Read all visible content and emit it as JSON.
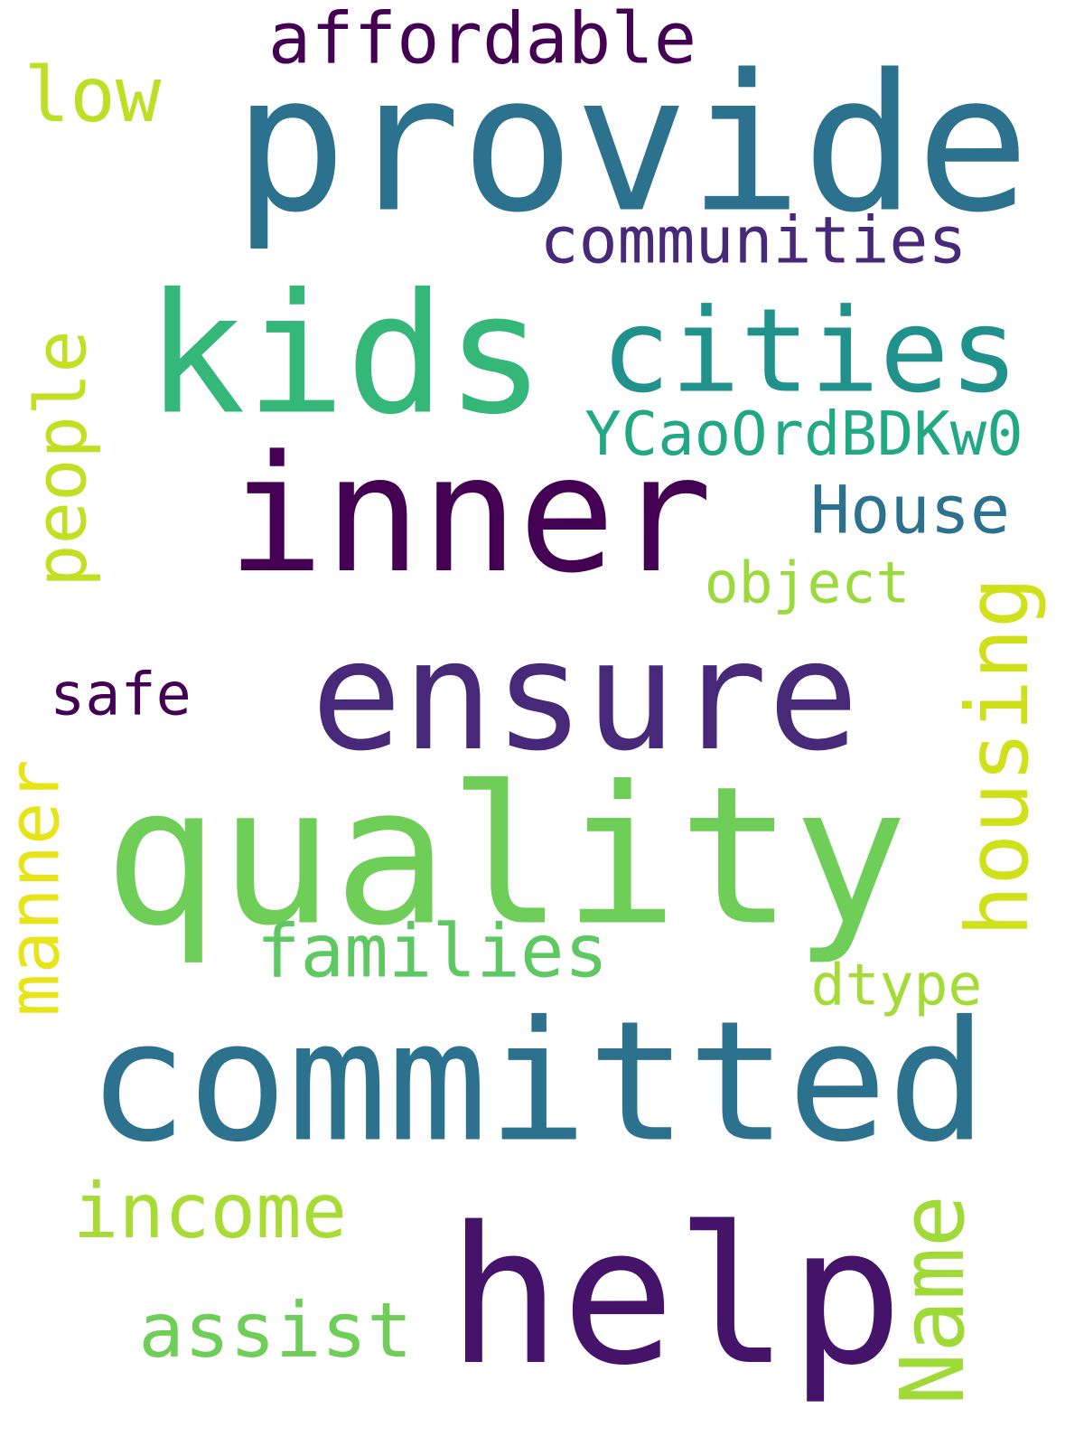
{
  "words": [
    {
      "text": "provide",
      "color": "#2c728e",
      "rotated": false
    },
    {
      "text": "affordable",
      "color": "#440154",
      "rotated": false
    },
    {
      "text": "low",
      "color": "#bddf26",
      "rotated": false
    },
    {
      "text": "communities",
      "color": "#482878",
      "rotated": false
    },
    {
      "text": "kids",
      "color": "#35b779",
      "rotated": false
    },
    {
      "text": "cities",
      "color": "#21918c",
      "rotated": false
    },
    {
      "text": "YCaoOrdBDKw0",
      "color": "#22a884",
      "rotated": false
    },
    {
      "text": "people",
      "color": "#c2df23",
      "rotated": true
    },
    {
      "text": "inner",
      "color": "#440154",
      "rotated": false
    },
    {
      "text": "House",
      "color": "#2c728e",
      "rotated": false
    },
    {
      "text": "object",
      "color": "#9bd93c",
      "rotated": false
    },
    {
      "text": "housing",
      "color": "#d0e11c",
      "rotated": true
    },
    {
      "text": "safe",
      "color": "#440154",
      "rotated": false
    },
    {
      "text": "ensure",
      "color": "#482878",
      "rotated": false
    },
    {
      "text": "manner",
      "color": "#e7e419",
      "rotated": true
    },
    {
      "text": "quality",
      "color": "#6ece58",
      "rotated": false
    },
    {
      "text": "families",
      "color": "#5ec962",
      "rotated": false
    },
    {
      "text": "dtype",
      "color": "#a5db36",
      "rotated": false
    },
    {
      "text": "committed",
      "color": "#2c728e",
      "rotated": false
    },
    {
      "text": "income",
      "color": "#a8db34",
      "rotated": false
    },
    {
      "text": "Name",
      "color": "#a0da39",
      "rotated": true
    },
    {
      "text": "help",
      "color": "#46136a",
      "rotated": false
    },
    {
      "text": "assist",
      "color": "#6ece58",
      "rotated": false
    }
  ]
}
